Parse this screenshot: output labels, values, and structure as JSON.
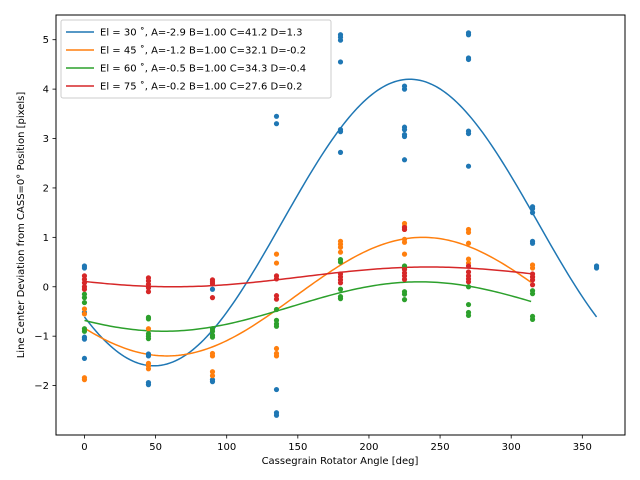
{
  "chart_data": {
    "type": "scatter",
    "xlabel": "Cassegrain Rotator Angle [deg]",
    "ylabel": "Line Center Deviation from CASS=0° Position [pixels]",
    "xlim": [
      -20,
      380
    ],
    "ylim": [
      -3,
      5.5
    ],
    "xticks": [
      0,
      50,
      100,
      150,
      200,
      250,
      300,
      350
    ],
    "yticks": [
      -2,
      -1,
      0,
      1,
      2,
      3,
      4,
      5
    ],
    "legend_position": "top-left",
    "series": [
      {
        "name": "El = 30$^\\circ$, A=-2.9 B=1.00 C=41.2 D=1.3",
        "label": "El = 30 ˚, A=-2.9 B=1.00 C=41.2 D=1.3",
        "color": "#1f77b4",
        "fit": {
          "A": -2.9,
          "B": 1.0,
          "C": 41.2,
          "D": 1.3,
          "x_range": [
            0,
            360
          ]
        },
        "points": [
          [
            0,
            0.42
          ],
          [
            0,
            0.38
          ],
          [
            0,
            -0.52
          ],
          [
            0,
            -1.02
          ],
          [
            0,
            -1.06
          ],
          [
            0,
            -1.45
          ],
          [
            45,
            -1.36
          ],
          [
            45,
            -1.4
          ],
          [
            45,
            -1.94
          ],
          [
            45,
            -1.98
          ],
          [
            90,
            -1.88
          ],
          [
            90,
            -1.92
          ],
          [
            90,
            -0.05
          ],
          [
            135,
            3.45
          ],
          [
            135,
            3.3
          ],
          [
            135,
            -2.08
          ],
          [
            135,
            -2.55
          ],
          [
            135,
            -2.6
          ],
          [
            180,
            5.1
          ],
          [
            180,
            5.05
          ],
          [
            180,
            4.99
          ],
          [
            180,
            4.55
          ],
          [
            180,
            3.18
          ],
          [
            180,
            3.14
          ],
          [
            180,
            2.72
          ],
          [
            225,
            4.06
          ],
          [
            225,
            4.0
          ],
          [
            225,
            3.23
          ],
          [
            225,
            3.18
          ],
          [
            225,
            3.08
          ],
          [
            225,
            3.04
          ],
          [
            225,
            2.57
          ],
          [
            270,
            5.14
          ],
          [
            270,
            5.1
          ],
          [
            270,
            4.63
          ],
          [
            270,
            4.6
          ],
          [
            270,
            3.15
          ],
          [
            270,
            3.1
          ],
          [
            270,
            2.44
          ],
          [
            315,
            1.62
          ],
          [
            315,
            1.58
          ],
          [
            315,
            1.5
          ],
          [
            315,
            0.92
          ],
          [
            315,
            0.88
          ],
          [
            360,
            0.42
          ],
          [
            360,
            0.38
          ]
        ]
      },
      {
        "name": "El = 45$^\\circ$, A=-1.2 B=1.00 C=32.1 D=-0.2",
        "label": "El = 45 ˚, A=-1.2 B=1.00 C=32.1 D=-0.2",
        "color": "#ff7f0e",
        "fit": {
          "A": -1.2,
          "B": 1.0,
          "C": 32.1,
          "D": -0.2,
          "x_range": [
            0,
            315
          ]
        },
        "points": [
          [
            0,
            -0.45
          ],
          [
            0,
            -0.55
          ],
          [
            0,
            -1.84
          ],
          [
            0,
            -1.88
          ],
          [
            45,
            -0.85
          ],
          [
            45,
            -1.55
          ],
          [
            45,
            -1.6
          ],
          [
            45,
            -1.66
          ],
          [
            90,
            -1.35
          ],
          [
            90,
            -1.4
          ],
          [
            90,
            -1.72
          ],
          [
            90,
            -1.8
          ],
          [
            135,
            0.66
          ],
          [
            135,
            0.48
          ],
          [
            135,
            -1.25
          ],
          [
            135,
            -1.35
          ],
          [
            135,
            -1.4
          ],
          [
            180,
            0.92
          ],
          [
            180,
            0.86
          ],
          [
            180,
            0.8
          ],
          [
            180,
            0.7
          ],
          [
            225,
            1.28
          ],
          [
            225,
            1.22
          ],
          [
            225,
            1.16
          ],
          [
            225,
            0.96
          ],
          [
            225,
            0.9
          ],
          [
            225,
            0.66
          ],
          [
            270,
            1.16
          ],
          [
            270,
            1.1
          ],
          [
            270,
            0.88
          ],
          [
            270,
            0.56
          ],
          [
            270,
            0.48
          ],
          [
            315,
            0.44
          ],
          [
            315,
            0.38
          ],
          [
            315,
            0.2
          ]
        ]
      },
      {
        "name": "El = 60$^\\circ$, A=-0.5 B=1.00 C=34.3 D=-0.4",
        "label": "El = 60 ˚, A=-0.5 B=1.00 C=34.3 D=-0.4",
        "color": "#2ca02c",
        "fit": {
          "A": -0.5,
          "B": 1.0,
          "C": 34.3,
          "D": -0.4,
          "x_range": [
            0,
            315
          ]
        },
        "points": [
          [
            0,
            -0.15
          ],
          [
            0,
            -0.22
          ],
          [
            0,
            -0.32
          ],
          [
            0,
            -0.85
          ],
          [
            0,
            -0.9
          ],
          [
            45,
            -0.62
          ],
          [
            45,
            -0.65
          ],
          [
            45,
            -0.95
          ],
          [
            45,
            -1.0
          ],
          [
            45,
            -1.05
          ],
          [
            90,
            -0.85
          ],
          [
            90,
            -0.9
          ],
          [
            90,
            -0.98
          ],
          [
            90,
            -1.02
          ],
          [
            135,
            -0.46
          ],
          [
            135,
            -0.68
          ],
          [
            135,
            -0.75
          ],
          [
            135,
            -0.8
          ],
          [
            180,
            0.55
          ],
          [
            180,
            0.5
          ],
          [
            180,
            -0.05
          ],
          [
            180,
            -0.2
          ],
          [
            180,
            -0.24
          ],
          [
            225,
            0.42
          ],
          [
            225,
            0.36
          ],
          [
            225,
            -0.1
          ],
          [
            225,
            -0.15
          ],
          [
            225,
            -0.26
          ],
          [
            270,
            0.0
          ],
          [
            270,
            -0.36
          ],
          [
            270,
            -0.52
          ],
          [
            270,
            -0.58
          ],
          [
            315,
            -0.08
          ],
          [
            315,
            -0.14
          ],
          [
            315,
            -0.6
          ],
          [
            315,
            -0.66
          ]
        ]
      },
      {
        "name": "El = 75$^\\circ$, A=-0.2 B=1.00 C=27.6 D=0.2",
        "label": "El = 75 ˚, A=-0.2 B=1.00 C=27.6 D=0.2",
        "color": "#d62728",
        "fit": {
          "A": -0.2,
          "B": 1.0,
          "C": 27.6,
          "D": 0.2,
          "x_range": [
            0,
            315
          ]
        },
        "points": [
          [
            0,
            0.22
          ],
          [
            0,
            0.15
          ],
          [
            0,
            0.08
          ],
          [
            0,
            0.0
          ],
          [
            0,
            -0.05
          ],
          [
            45,
            0.18
          ],
          [
            45,
            0.12
          ],
          [
            45,
            0.05
          ],
          [
            45,
            -0.02
          ],
          [
            45,
            -0.1
          ],
          [
            90,
            0.14
          ],
          [
            90,
            0.1
          ],
          [
            90,
            0.06
          ],
          [
            90,
            -0.22
          ],
          [
            135,
            0.22
          ],
          [
            135,
            0.16
          ],
          [
            135,
            -0.18
          ],
          [
            135,
            -0.25
          ],
          [
            180,
            0.26
          ],
          [
            180,
            0.2
          ],
          [
            180,
            0.14
          ],
          [
            180,
            0.08
          ],
          [
            225,
            1.2
          ],
          [
            225,
            1.16
          ],
          [
            225,
            0.35
          ],
          [
            225,
            0.28
          ],
          [
            225,
            0.22
          ],
          [
            225,
            0.15
          ],
          [
            270,
            0.42
          ],
          [
            270,
            0.3
          ],
          [
            270,
            0.22
          ],
          [
            270,
            0.16
          ],
          [
            270,
            0.1
          ],
          [
            315,
            0.26
          ],
          [
            315,
            0.2
          ],
          [
            315,
            0.14
          ],
          [
            315,
            0.04
          ]
        ]
      }
    ]
  }
}
